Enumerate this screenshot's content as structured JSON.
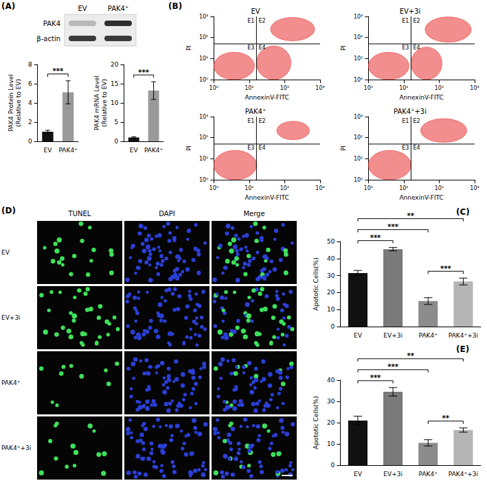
{
  "panel_labels": [
    "(A)",
    "(B)",
    "(C)",
    "(D)",
    "(E)"
  ],
  "blot": {
    "lanes": [
      "EV",
      "PAK4⁺"
    ],
    "bands": [
      "PAK4",
      "β-actin"
    ]
  },
  "microscopy": {
    "columns": [
      "TUNEL",
      "DAPI",
      "Merge"
    ],
    "rows": [
      "EV",
      "EV+3i",
      "PAK4⁺",
      "PAK4⁺+3i"
    ]
  },
  "chart_data": [
    {
      "type": "bar",
      "y_label": "PAK4 Protein Level\n(Relative to EV)",
      "categories": [
        "EV",
        "PAK4⁺"
      ],
      "values": [
        1,
        5.1
      ],
      "errors": [
        0.15,
        1.2
      ],
      "colors": [
        "#111111",
        "#9a9a9a"
      ],
      "ylim": [
        0,
        8
      ],
      "yticks": [
        0,
        2,
        4,
        6,
        8
      ],
      "grid": false,
      "comparisons": [
        {
          "pair": [
            "EV",
            "PAK4⁺"
          ],
          "label": "***"
        }
      ]
    },
    {
      "type": "bar",
      "y_label": "PAK4 mRNA Level\n(Relative to EV)",
      "categories": [
        "EV",
        "PAK4⁺"
      ],
      "values": [
        1,
        13.2
      ],
      "errors": [
        0.2,
        2.3
      ],
      "colors": [
        "#111111",
        "#9a9a9a"
      ],
      "ylim": [
        0,
        20
      ],
      "yticks": [
        0,
        5,
        10,
        15,
        20
      ],
      "grid": false,
      "comparisons": [
        {
          "pair": [
            "EV",
            "PAK4⁺"
          ],
          "label": "***"
        }
      ]
    },
    {
      "type": "scatter",
      "title": "EV",
      "x_label": "AnnexinV-FITC",
      "y_label": "PI",
      "log": true,
      "grid": false,
      "color": "#e8322f",
      "xlim": [
        1,
        1000
      ],
      "ylim": [
        1,
        1000
      ],
      "xticks": [
        {
          "value": 1,
          "label": "10⁰"
        },
        {
          "value": 10,
          "label": "10¹"
        },
        {
          "value": 100,
          "label": "10²"
        },
        {
          "value": 1000,
          "label": "10³"
        }
      ],
      "yticks": [
        {
          "value": 1,
          "label": "10⁰"
        },
        {
          "value": 10,
          "label": "10¹"
        },
        {
          "value": 100,
          "label": "10²"
        },
        {
          "value": 1000,
          "label": "10³"
        }
      ],
      "quadrants": {
        "x": 16,
        "y": 50,
        "labels": [
          "E1",
          "E2",
          "E3",
          "E4"
        ]
      },
      "populations": [
        {
          "x": [
            1,
            14
          ],
          "y": [
            1,
            20
          ]
        },
        {
          "x": [
            40,
            700
          ],
          "y": [
            70,
            900
          ]
        },
        {
          "x": [
            16,
            150
          ],
          "y": [
            1,
            40
          ]
        }
      ]
    },
    {
      "type": "scatter",
      "title": "EV+3i",
      "x_label": "AnnexinV-FITC",
      "y_label": "PI",
      "log": true,
      "grid": false,
      "color": "#e8322f",
      "xlim": [
        1,
        1000
      ],
      "ylim": [
        1,
        1000
      ],
      "xticks": [
        {
          "value": 1,
          "label": "10⁰"
        },
        {
          "value": 10,
          "label": "10¹"
        },
        {
          "value": 100,
          "label": "10²"
        },
        {
          "value": 1000,
          "label": "10³"
        }
      ],
      "yticks": [
        {
          "value": 1,
          "label": "10⁰"
        },
        {
          "value": 10,
          "label": "10¹"
        },
        {
          "value": 100,
          "label": "10²"
        },
        {
          "value": 1000,
          "label": "10³"
        }
      ],
      "quadrants": {
        "x": 16,
        "y": 50,
        "labels": [
          "E1",
          "E2",
          "E3",
          "E4"
        ]
      },
      "populations": [
        {
          "x": [
            1,
            14
          ],
          "y": [
            1,
            20
          ]
        },
        {
          "x": [
            40,
            800
          ],
          "y": [
            60,
            950
          ]
        },
        {
          "x": [
            16,
            120
          ],
          "y": [
            1,
            35
          ]
        }
      ]
    },
    {
      "type": "scatter",
      "title": "PAK4⁺",
      "x_label": "AnnexinV-FITC",
      "y_label": "PI",
      "log": true,
      "grid": false,
      "color": "#e8322f",
      "xlim": [
        1,
        1000
      ],
      "ylim": [
        1,
        1000
      ],
      "xticks": [
        {
          "value": 1,
          "label": "10⁰"
        },
        {
          "value": 10,
          "label": "10¹"
        },
        {
          "value": 100,
          "label": "10²"
        },
        {
          "value": 1000,
          "label": "10³"
        }
      ],
      "yticks": [
        {
          "value": 1,
          "label": "10⁰"
        },
        {
          "value": 10,
          "label": "10¹"
        },
        {
          "value": 100,
          "label": "10²"
        },
        {
          "value": 1000,
          "label": "10³"
        }
      ],
      "quadrants": {
        "x": 16,
        "y": 50,
        "labels": [
          "E1",
          "E2",
          "E3",
          "E4"
        ]
      },
      "populations": [
        {
          "x": [
            1,
            16
          ],
          "y": [
            1,
            25
          ]
        },
        {
          "x": [
            60,
            500
          ],
          "y": [
            80,
            600
          ]
        }
      ]
    },
    {
      "type": "scatter",
      "title": "PAK4⁺+3i",
      "x_label": "AnnexinV-FITC",
      "y_label": "PI",
      "log": true,
      "grid": false,
      "color": "#e8322f",
      "xlim": [
        1,
        1000
      ],
      "ylim": [
        1,
        1000
      ],
      "xticks": [
        {
          "value": 1,
          "label": "10⁰"
        },
        {
          "value": 10,
          "label": "10¹"
        },
        {
          "value": 100,
          "label": "10²"
        },
        {
          "value": 1000,
          "label": "10³"
        }
      ],
      "yticks": [
        {
          "value": 1,
          "label": "10⁰"
        },
        {
          "value": 10,
          "label": "10¹"
        },
        {
          "value": 100,
          "label": "10²"
        },
        {
          "value": 1000,
          "label": "10³"
        }
      ],
      "quadrants": {
        "x": 16,
        "y": 50,
        "labels": [
          "E1",
          "E2",
          "E3",
          "E4"
        ]
      },
      "populations": [
        {
          "x": [
            1,
            16
          ],
          "y": [
            1,
            25
          ]
        },
        {
          "x": [
            30,
            600
          ],
          "y": [
            60,
            800
          ]
        }
      ]
    },
    {
      "type": "bar",
      "y_label": "Apototic Cells(%)",
      "categories": [
        "EV",
        "EV+3i",
        "PAK4⁺",
        "PAK4⁺+3i"
      ],
      "values": [
        31.5,
        45.5,
        15,
        26.5
      ],
      "errors": [
        1.5,
        1,
        2,
        2
      ],
      "colors": [
        "#111111",
        "#7a7a7a",
        "#8c8c8c",
        "#b5b5b5"
      ],
      "ylim": [
        0,
        50
      ],
      "yticks": [
        0,
        10,
        20,
        30,
        40,
        50
      ],
      "grid": false,
      "comparisons": [
        {
          "pair": [
            "EV",
            "EV+3i"
          ],
          "label": "***"
        },
        {
          "pair": [
            "EV",
            "PAK4⁺"
          ],
          "label": "***"
        },
        {
          "pair": [
            "EV",
            "PAK4⁺+3i"
          ],
          "label": "**"
        },
        {
          "pair": [
            "PAK4⁺",
            "PAK4⁺+3i"
          ],
          "label": "***"
        }
      ]
    },
    {
      "type": "bar",
      "y_label": "Apototic Cells(%)",
      "categories": [
        "EV",
        "EV+3i",
        "PAK4⁺",
        "PAK4⁺+3i"
      ],
      "values": [
        21,
        34.5,
        10.5,
        16.5
      ],
      "errors": [
        2,
        2,
        1.5,
        1
      ],
      "colors": [
        "#111111",
        "#7a7a7a",
        "#8c8c8c",
        "#b5b5b5"
      ],
      "ylim": [
        0,
        40
      ],
      "yticks": [
        0,
        10,
        20,
        30,
        40
      ],
      "grid": false,
      "comparisons": [
        {
          "pair": [
            "EV",
            "EV+3i"
          ],
          "label": "***"
        },
        {
          "pair": [
            "EV",
            "PAK4⁺"
          ],
          "label": "***"
        },
        {
          "pair": [
            "EV",
            "PAK4⁺+3i"
          ],
          "label": "**"
        },
        {
          "pair": [
            "PAK4⁺",
            "PAK4⁺+3i"
          ],
          "label": "**"
        }
      ]
    }
  ]
}
